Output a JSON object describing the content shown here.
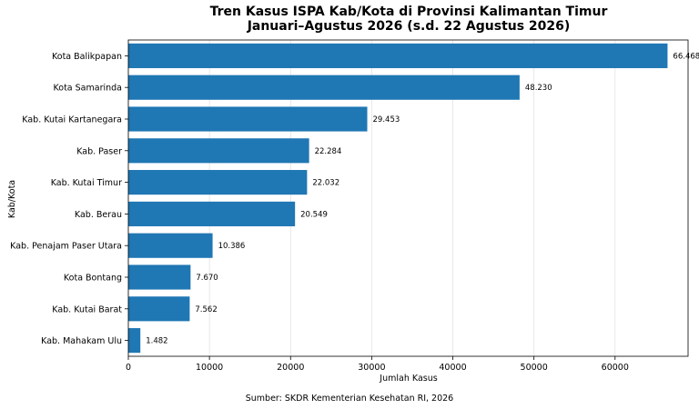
{
  "chart_data": {
    "type": "bar",
    "orientation": "horizontal",
    "title": "Tren Kasus ISPA Kab/Kota di Provinsi Kalimantan Timur",
    "subtitle": "Januari–Agustus 2026 (s.d. 22 Agustus 2026)",
    "xlabel": "Jumlah Kasus",
    "ylabel": "Kab/Kota",
    "source": "Sumber: SKDR Kementerian Kesehatan RI, 2026",
    "xlim": [
      0,
      69000
    ],
    "xticks": [
      0,
      10000,
      20000,
      30000,
      40000,
      50000,
      60000
    ],
    "grid": "x",
    "bar_color": "#1f77b4",
    "categories": [
      "Kota Balikpapan",
      "Kota Samarinda",
      "Kab. Kutai Kartanegara",
      "Kab. Paser",
      "Kab. Kutai Timur",
      "Kab. Berau",
      "Kab. Penajam Paser Utara",
      "Kota Bontang",
      "Kab. Kutai Barat",
      "Kab. Mahakam Ulu"
    ],
    "values": [
      66468,
      48230,
      29453,
      22284,
      22032,
      20549,
      10386,
      7670,
      7562,
      1482
    ],
    "value_labels": [
      "66.468",
      "48.230",
      "29.453",
      "22.284",
      "22.032",
      "20.549",
      "10.386",
      "7.670",
      "7.562",
      "1.482"
    ]
  }
}
